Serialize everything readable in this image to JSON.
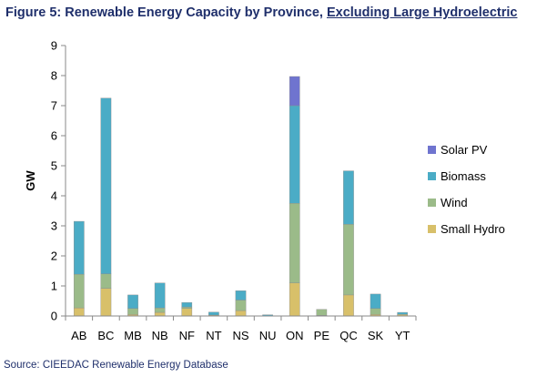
{
  "figure_title": {
    "prefix": "Figure 5: Renewable Energy Capacity by Province, ",
    "underlined": "Excluding Large Hydroelectric"
  },
  "source": "Source: CIEEDAC Renewable Energy Database",
  "colors": {
    "Solar PV": "#6f74cf",
    "Biomass": "#4bacc6",
    "Wind": "#9bbb89",
    "Small Hydro": "#d8c06a",
    "axis": "#888888"
  },
  "chart_data": {
    "type": "bar",
    "stacked": true,
    "ylabel": "GW",
    "xlabel": "",
    "ylim": [
      0,
      9
    ],
    "yticks": [
      0,
      1,
      2,
      3,
      4,
      5,
      6,
      7,
      8,
      9
    ],
    "grid": false,
    "legend_position": "right",
    "categories": [
      "AB",
      "BC",
      "MB",
      "NB",
      "NF",
      "NT",
      "NS",
      "NU",
      "ON",
      "PE",
      "QC",
      "SK",
      "YT"
    ],
    "series": [
      {
        "name": "Small Hydro",
        "values": [
          0.27,
          0.92,
          0.05,
          0.12,
          0.25,
          0.03,
          0.18,
          0.01,
          1.1,
          0.02,
          0.7,
          0.05,
          0.05
        ]
      },
      {
        "name": "Wind",
        "values": [
          1.12,
          0.48,
          0.2,
          0.15,
          0.05,
          0.0,
          0.35,
          0.0,
          2.65,
          0.2,
          2.35,
          0.2,
          0.0
        ]
      },
      {
        "name": "Biomass",
        "values": [
          1.76,
          5.85,
          0.45,
          0.83,
          0.15,
          0.1,
          0.31,
          0.03,
          3.25,
          0.0,
          1.78,
          0.48,
          0.07
        ]
      },
      {
        "name": "Solar PV",
        "values": [
          0.0,
          0.0,
          0.0,
          0.0,
          0.0,
          0.0,
          0.0,
          0.0,
          0.97,
          0.0,
          0.0,
          0.0,
          0.0
        ]
      }
    ]
  }
}
